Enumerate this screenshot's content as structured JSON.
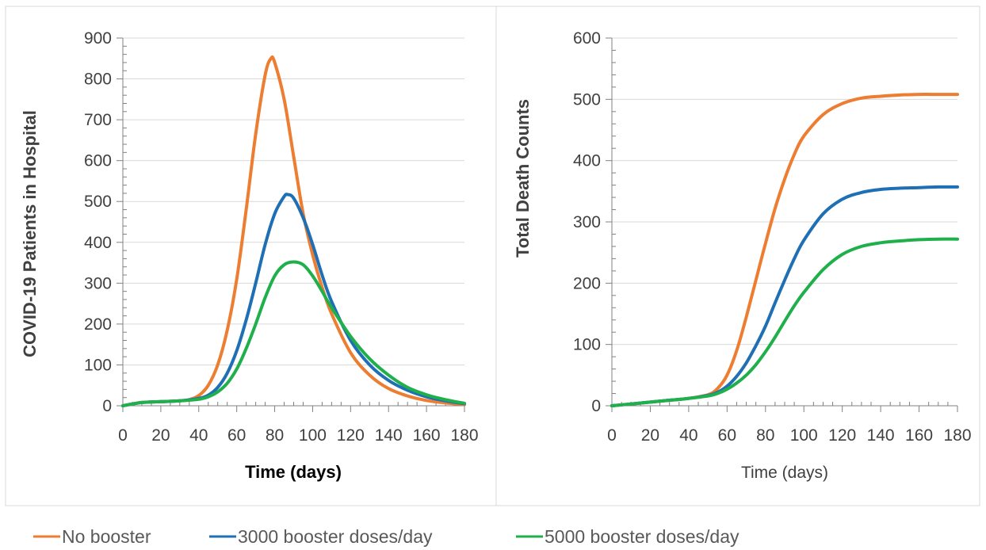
{
  "colors": {
    "orange": "#ED7D31",
    "blue": "#1F6FB4",
    "green": "#1FB04C"
  },
  "legend": [
    {
      "label": "No booster",
      "color": "#ED7D31"
    },
    {
      "label": "3000 booster doses/day",
      "color": "#1F6FB4"
    },
    {
      "label": "5000 booster doses/day",
      "color": "#1FB04C"
    }
  ],
  "chart_data": [
    {
      "type": "line",
      "xlabel": "Time (days)",
      "ylabel": "COVID-19 Patients in Hospital",
      "xlim": [
        0,
        180
      ],
      "ylim": [
        0,
        900
      ],
      "xticks": [
        0,
        20,
        40,
        60,
        80,
        100,
        120,
        140,
        160,
        180
      ],
      "yticks": [
        0,
        100,
        200,
        300,
        400,
        500,
        600,
        700,
        800,
        900
      ],
      "grid": true,
      "legend_position": "bottom",
      "series": [
        {
          "name": "No booster",
          "color": "#ED7D31",
          "x": [
            0,
            10,
            20,
            30,
            35,
            40,
            45,
            50,
            55,
            60,
            65,
            70,
            75,
            78,
            80,
            85,
            90,
            95,
            100,
            105,
            110,
            120,
            130,
            140,
            150,
            160,
            170,
            180
          ],
          "y": [
            0,
            8,
            10,
            12,
            15,
            25,
            50,
            100,
            185,
            310,
            480,
            665,
            810,
            850,
            840,
            750,
            610,
            470,
            370,
            290,
            225,
            130,
            75,
            42,
            24,
            13,
            7,
            3
          ]
        },
        {
          "name": "3000 booster doses/day",
          "color": "#1F6FB4",
          "x": [
            0,
            10,
            20,
            30,
            40,
            45,
            50,
            55,
            60,
            65,
            70,
            75,
            80,
            85,
            87,
            90,
            95,
            100,
            105,
            110,
            120,
            130,
            140,
            150,
            160,
            170,
            180
          ],
          "y": [
            0,
            8,
            10,
            12,
            18,
            26,
            45,
            80,
            135,
            210,
            300,
            395,
            470,
            512,
            517,
            508,
            460,
            395,
            320,
            255,
            160,
            100,
            62,
            38,
            22,
            12,
            5
          ]
        },
        {
          "name": "5000 booster doses/day",
          "color": "#1FB04C",
          "x": [
            0,
            10,
            20,
            30,
            40,
            45,
            50,
            55,
            60,
            65,
            70,
            75,
            80,
            85,
            90,
            95,
            100,
            105,
            110,
            120,
            130,
            140,
            150,
            160,
            170,
            180
          ],
          "y": [
            0,
            8,
            10,
            12,
            16,
            22,
            34,
            55,
            90,
            140,
            200,
            265,
            318,
            345,
            352,
            345,
            318,
            280,
            240,
            170,
            115,
            75,
            45,
            27,
            15,
            6
          ]
        }
      ]
    },
    {
      "type": "line",
      "xlabel": "Time (days)",
      "ylabel": "Total Death Counts",
      "xlim": [
        0,
        180
      ],
      "ylim": [
        0,
        600
      ],
      "xticks": [
        0,
        20,
        40,
        60,
        80,
        100,
        120,
        140,
        160,
        180
      ],
      "yticks": [
        0,
        100,
        200,
        300,
        400,
        500,
        600
      ],
      "grid": true,
      "legend_position": "bottom",
      "series": [
        {
          "name": "No booster",
          "color": "#ED7D31",
          "x": [
            0,
            10,
            20,
            30,
            40,
            50,
            55,
            60,
            65,
            70,
            75,
            80,
            85,
            90,
            95,
            100,
            110,
            120,
            130,
            140,
            150,
            160,
            170,
            180
          ],
          "y": [
            0,
            3,
            6,
            9,
            12,
            18,
            28,
            50,
            90,
            145,
            205,
            265,
            322,
            370,
            410,
            440,
            475,
            493,
            502,
            505,
            507,
            508,
            508,
            508
          ]
        },
        {
          "name": "3000 booster doses/day",
          "color": "#1F6FB4",
          "x": [
            0,
            10,
            20,
            30,
            40,
            50,
            55,
            60,
            65,
            70,
            75,
            80,
            85,
            90,
            95,
            100,
            110,
            120,
            130,
            140,
            150,
            160,
            170,
            180
          ],
          "y": [
            0,
            3,
            6,
            9,
            12,
            17,
            22,
            32,
            48,
            70,
            98,
            130,
            168,
            205,
            240,
            270,
            313,
            337,
            348,
            353,
            355,
            356,
            357,
            357
          ]
        },
        {
          "name": "5000 booster doses/day",
          "color": "#1FB04C",
          "x": [
            0,
            10,
            20,
            30,
            40,
            50,
            55,
            60,
            65,
            70,
            75,
            80,
            85,
            90,
            95,
            100,
            110,
            120,
            130,
            140,
            150,
            160,
            170,
            180
          ],
          "y": [
            0,
            3,
            6,
            9,
            12,
            16,
            20,
            27,
            37,
            50,
            67,
            88,
            112,
            138,
            163,
            185,
            222,
            247,
            260,
            266,
            269,
            271,
            272,
            272
          ]
        }
      ]
    }
  ]
}
